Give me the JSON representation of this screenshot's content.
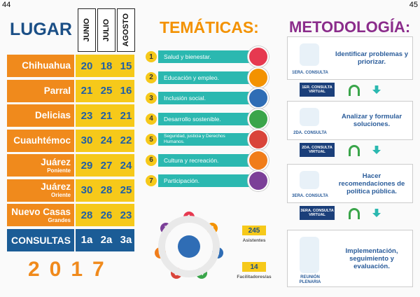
{
  "page_numbers": {
    "left": "44",
    "right": "45"
  },
  "lugar": {
    "title": "LUGAR",
    "months": [
      "JUNIO",
      "JULIO",
      "AGOSTO"
    ],
    "rows": [
      {
        "name": "Chihuahua",
        "values": [
          20,
          18,
          15
        ]
      },
      {
        "name": "Parral",
        "values": [
          21,
          25,
          16
        ]
      },
      {
        "name": "Delicias",
        "values": [
          23,
          21,
          21
        ]
      },
      {
        "name": "Cuauhtémoc",
        "values": [
          30,
          24,
          22
        ]
      },
      {
        "name": "Juárez",
        "sub": "Poniente",
        "values": [
          29,
          27,
          24
        ]
      },
      {
        "name": "Juárez",
        "sub": "Oriente",
        "values": [
          30,
          28,
          25
        ]
      },
      {
        "name": "Nuevo Casas",
        "sub": "Grandes",
        "values": [
          28,
          26,
          23
        ]
      }
    ],
    "total": {
      "name": "CONSULTAS",
      "values": [
        "1a",
        "2a",
        "3a"
      ]
    },
    "year": "2017"
  },
  "tematicas": {
    "title": "TEMÁTICAS:",
    "items": [
      {
        "number": "1",
        "label": "Salud y bienestar.",
        "color": "#e63950"
      },
      {
        "number": "2",
        "label": "Educación y empleo.",
        "color": "#f39200"
      },
      {
        "number": "3",
        "label": "Inclusión social.",
        "color": "#2f6db5"
      },
      {
        "number": "4",
        "label": "Desarrollo sostenible.",
        "color": "#3aa54a"
      },
      {
        "number": "5",
        "label": "Seguridad, justicia y Derechos Humanos.",
        "color": "#d9443a"
      },
      {
        "number": "6",
        "label": "Cultura y recreación.",
        "color": "#f07d1a"
      },
      {
        "number": "7",
        "label": "Participación.",
        "color": "#7b3f98"
      }
    ],
    "stats": [
      {
        "value": "245",
        "label": "Asistentes"
      },
      {
        "value": "14",
        "label": "Facilitadores/as"
      }
    ]
  },
  "metodologia": {
    "title": "METODOLOGÍA:",
    "steps": [
      {
        "label": "1ERA. CONSULTA",
        "text": "Identificar problemas y priorizar.",
        "virtual": "1ER. CONSULTA VIRTUAL"
      },
      {
        "label": "2DA. CONSULTA",
        "text": "Analizar y formular soluciones.",
        "virtual": "2DA. CONSULTA VIRTUAL"
      },
      {
        "label": "3ERA. CONSULTA",
        "text": "Hacer recomendaciones de política pública.",
        "virtual": "3ERA. CONSULTA VIRTUAL"
      },
      {
        "label": "REUNIÓN PLENARIA",
        "text": "Implementación, seguimiento y evaluación."
      }
    ]
  }
}
